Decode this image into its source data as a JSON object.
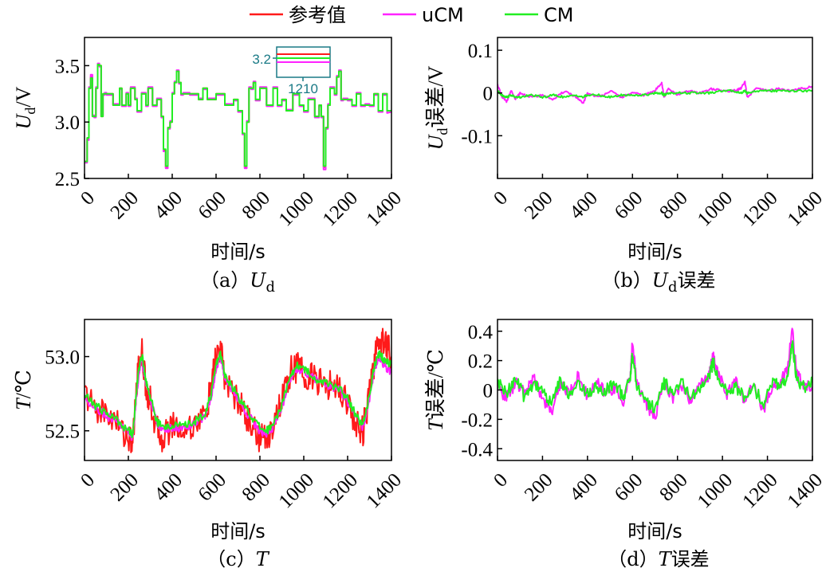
{
  "legend": {
    "items": [
      {
        "label": "参考值",
        "color": "#ff1a1a"
      },
      {
        "label": "uCM",
        "color": "#ff22ff"
      },
      {
        "label": "CM",
        "color": "#22ee22"
      }
    ]
  },
  "chart_data": [
    {
      "id": "a",
      "type": "line",
      "caption": "（a）",
      "caption_var": "U",
      "caption_sub": "d",
      "ylabel_var": "U",
      "ylabel_sub": "d",
      "ylabel_unit": "/V",
      "xlabel": "时间/s",
      "xlim": [
        0,
        1400
      ],
      "ylim": [
        2.5,
        3.75
      ],
      "xticks": [
        0,
        200,
        400,
        600,
        800,
        1000,
        1200,
        1400
      ],
      "yticks": [
        2.5,
        3.0,
        3.5
      ],
      "ytick_labels": [
        "2.5",
        "3.0",
        "3.5"
      ],
      "x": [
        0,
        12,
        20,
        28,
        36,
        44,
        52,
        60,
        68,
        76,
        84,
        92,
        100,
        130,
        160,
        170,
        190,
        200,
        210,
        230,
        240,
        260,
        280,
        290,
        310,
        330,
        350,
        360,
        370,
        380,
        390,
        400,
        410,
        420,
        430,
        440,
        450,
        480,
        520,
        540,
        560,
        600,
        640,
        680,
        700,
        720,
        730,
        740,
        750,
        760,
        770,
        780,
        800,
        830,
        860,
        880,
        900,
        920,
        950,
        980,
        1000,
        1020,
        1050,
        1070,
        1080,
        1090,
        1100,
        1110,
        1120,
        1140,
        1150,
        1160,
        1170,
        1180,
        1200,
        1220,
        1240,
        1260,
        1280,
        1300,
        1320,
        1340,
        1360,
        1380,
        1400
      ],
      "series": [
        {
          "name": "参考值",
          "color": "#ff1a1a",
          "values": [
            2.65,
            2.85,
            3.3,
            3.4,
            3.05,
            3.05,
            3.3,
            3.5,
            3.5,
            3.05,
            3.25,
            3.25,
            3.25,
            3.15,
            3.3,
            3.15,
            3.25,
            3.15,
            3.3,
            3.2,
            3.1,
            3.25,
            3.15,
            3.3,
            3.15,
            3.2,
            3.05,
            2.75,
            2.6,
            2.95,
            3.0,
            3.25,
            3.35,
            3.45,
            3.35,
            3.25,
            3.25,
            3.25,
            3.2,
            3.3,
            3.2,
            3.25,
            3.15,
            3.2,
            3.1,
            2.9,
            2.6,
            3.0,
            3.3,
            3.3,
            3.35,
            3.2,
            3.3,
            3.15,
            3.3,
            3.15,
            3.2,
            3.1,
            3.25,
            3.15,
            3.1,
            3.2,
            3.05,
            3.15,
            3.05,
            2.6,
            2.95,
            3.15,
            3.3,
            3.25,
            3.4,
            3.45,
            3.2,
            3.2,
            3.2,
            3.15,
            3.25,
            3.15,
            3.15,
            3.15,
            3.25,
            3.1,
            3.25,
            3.1,
            3.1
          ]
        },
        {
          "name": "uCM",
          "color": "#ff22ff",
          "values": [
            2.64,
            2.84,
            3.31,
            3.42,
            3.06,
            3.04,
            3.31,
            3.52,
            3.49,
            3.06,
            3.24,
            3.26,
            3.24,
            3.16,
            3.29,
            3.14,
            3.26,
            3.14,
            3.31,
            3.21,
            3.09,
            3.26,
            3.14,
            3.31,
            3.14,
            3.21,
            3.04,
            2.74,
            2.59,
            2.94,
            3.01,
            3.26,
            3.36,
            3.46,
            3.34,
            3.24,
            3.26,
            3.24,
            3.21,
            3.29,
            3.21,
            3.24,
            3.16,
            3.19,
            3.09,
            2.89,
            2.59,
            3.01,
            3.31,
            3.29,
            3.36,
            3.19,
            3.31,
            3.14,
            3.31,
            3.14,
            3.19,
            3.11,
            3.24,
            3.14,
            3.09,
            3.21,
            3.04,
            3.14,
            3.04,
            2.58,
            2.94,
            3.16,
            3.31,
            3.24,
            3.41,
            3.46,
            3.19,
            3.21,
            3.19,
            3.14,
            3.26,
            3.14,
            3.16,
            3.14,
            3.24,
            3.09,
            3.24,
            3.08,
            3.09
          ]
        },
        {
          "name": "CM",
          "color": "#22ee22",
          "values": [
            2.65,
            2.86,
            3.3,
            3.39,
            3.05,
            3.05,
            3.3,
            3.51,
            3.5,
            3.05,
            3.25,
            3.25,
            3.25,
            3.15,
            3.3,
            3.15,
            3.25,
            3.15,
            3.3,
            3.2,
            3.1,
            3.25,
            3.15,
            3.3,
            3.15,
            3.2,
            3.05,
            2.76,
            2.61,
            2.95,
            3.0,
            3.25,
            3.35,
            3.45,
            3.35,
            3.25,
            3.25,
            3.25,
            3.2,
            3.3,
            3.2,
            3.25,
            3.15,
            3.2,
            3.1,
            2.9,
            2.61,
            3.0,
            3.3,
            3.3,
            3.35,
            3.2,
            3.3,
            3.15,
            3.3,
            3.15,
            3.2,
            3.1,
            3.25,
            3.15,
            3.1,
            3.2,
            3.05,
            3.15,
            3.05,
            2.61,
            2.95,
            3.15,
            3.3,
            3.25,
            3.4,
            3.45,
            3.2,
            3.2,
            3.2,
            3.15,
            3.25,
            3.15,
            3.15,
            3.15,
            3.25,
            3.1,
            3.25,
            3.1,
            3.1
          ]
        }
      ],
      "inset": {
        "ylabel": "3.2",
        "xlabel": "1210"
      }
    },
    {
      "id": "b",
      "type": "line",
      "caption": "（b）",
      "caption_var": "U",
      "caption_sub": "d",
      "caption_suffix": "误差",
      "ylabel_var": "U",
      "ylabel_sub": "d",
      "ylabel_unit": "误差/V",
      "xlabel": "时间/s",
      "xlim": [
        0,
        1400
      ],
      "ylim": [
        -0.2,
        0.13
      ],
      "xticks": [
        0,
        200,
        400,
        600,
        800,
        1000,
        1200,
        1400
      ],
      "yticks": [
        -0.1,
        0,
        0.1
      ],
      "ytick_labels": [
        "-0.1",
        "0",
        "0.1"
      ],
      "x": [
        0,
        20,
        40,
        60,
        80,
        100,
        150,
        200,
        250,
        300,
        350,
        380,
        400,
        450,
        500,
        550,
        600,
        650,
        700,
        730,
        740,
        760,
        800,
        850,
        900,
        950,
        1000,
        1050,
        1080,
        1100,
        1110,
        1150,
        1200,
        1250,
        1300,
        1350,
        1400
      ],
      "series": [
        {
          "name": "uCM",
          "color": "#ff22ff",
          "values": [
            0.02,
            -0.01,
            -0.02,
            0.005,
            -0.015,
            0.0,
            -0.01,
            -0.005,
            -0.015,
            0.005,
            -0.01,
            -0.025,
            0.0,
            -0.01,
            0.005,
            -0.01,
            0.0,
            -0.005,
            0.005,
            0.025,
            -0.01,
            0.01,
            -0.005,
            0.005,
            0.0,
            0.01,
            0.005,
            0.005,
            0.01,
            0.025,
            -0.01,
            0.01,
            0.005,
            0.01,
            0.005,
            0.01,
            0.015
          ]
        },
        {
          "name": "CM",
          "color": "#22ee22",
          "values": [
            0.005,
            -0.005,
            -0.01,
            -0.005,
            -0.01,
            -0.01,
            -0.005,
            -0.01,
            -0.005,
            -0.01,
            -0.005,
            -0.01,
            -0.005,
            -0.005,
            -0.01,
            -0.005,
            -0.005,
            -0.005,
            0.0,
            0.0,
            -0.005,
            0.0,
            0.0,
            0.0,
            0.0,
            0.0,
            0.005,
            0.005,
            0.0,
            0.005,
            0.0,
            0.005,
            0.005,
            0.005,
            0.005,
            0.005,
            0.005
          ]
        }
      ]
    },
    {
      "id": "c",
      "type": "line",
      "caption": "（c）",
      "caption_var": "T",
      "ylabel_var": "T",
      "ylabel_unit": "/℃",
      "xlabel": "时间/s",
      "xlim": [
        0,
        1400
      ],
      "ylim": [
        52.3,
        53.25
      ],
      "xticks": [
        0,
        200,
        400,
        600,
        800,
        1000,
        1200,
        1400
      ],
      "yticks": [
        52.5,
        53.0
      ],
      "ytick_labels": [
        "52.5",
        "53.0"
      ],
      "x": [
        0,
        50,
        100,
        150,
        200,
        220,
        240,
        260,
        280,
        300,
        330,
        360,
        400,
        450,
        500,
        550,
        580,
        600,
        620,
        640,
        680,
        720,
        760,
        800,
        830,
        860,
        900,
        940,
        970,
        1000,
        1040,
        1080,
        1120,
        1160,
        1200,
        1240,
        1270,
        1300,
        1320,
        1340,
        1360,
        1380,
        1400
      ],
      "series": [
        {
          "name": "参考值",
          "color": "#ff1a1a",
          "values": [
            52.75,
            52.65,
            52.62,
            52.55,
            52.45,
            52.42,
            52.85,
            53.05,
            52.8,
            52.7,
            52.5,
            52.45,
            52.55,
            52.5,
            52.55,
            52.6,
            52.8,
            53.0,
            53.05,
            52.85,
            52.75,
            52.65,
            52.55,
            52.45,
            52.45,
            52.55,
            52.7,
            52.9,
            52.93,
            52.9,
            52.85,
            52.82,
            52.8,
            52.8,
            52.7,
            52.55,
            52.5,
            52.75,
            52.95,
            53.1,
            53.12,
            53.08,
            53.0
          ]
        },
        {
          "name": "uCM",
          "color": "#ff22ff",
          "values": [
            52.72,
            52.66,
            52.6,
            52.56,
            52.48,
            52.46,
            52.78,
            53.0,
            52.82,
            52.72,
            52.55,
            52.5,
            52.52,
            52.52,
            52.54,
            52.6,
            52.74,
            52.92,
            53.0,
            52.86,
            52.76,
            52.66,
            52.58,
            52.5,
            52.48,
            52.52,
            52.66,
            52.86,
            52.92,
            52.9,
            52.86,
            52.82,
            52.8,
            52.78,
            52.7,
            52.58,
            52.52,
            52.7,
            52.9,
            53.0,
            52.96,
            52.92,
            52.9
          ]
        },
        {
          "name": "CM",
          "color": "#22ee22",
          "values": [
            52.74,
            52.67,
            52.62,
            52.57,
            52.5,
            52.48,
            52.82,
            53.02,
            52.84,
            52.73,
            52.56,
            52.52,
            52.54,
            52.53,
            52.56,
            52.62,
            52.76,
            52.95,
            53.02,
            52.88,
            52.78,
            52.68,
            52.6,
            52.52,
            52.5,
            52.54,
            52.68,
            52.88,
            52.94,
            52.92,
            52.87,
            52.83,
            52.81,
            52.79,
            52.72,
            52.6,
            52.54,
            52.74,
            52.92,
            53.02,
            52.99,
            52.96,
            52.95
          ]
        }
      ]
    },
    {
      "id": "d",
      "type": "line",
      "caption": "（d）",
      "caption_var": "T",
      "caption_suffix": "误差",
      "ylabel_var": "T",
      "ylabel_unit": "误差/℃",
      "xlabel": "时间/s",
      "xlim": [
        0,
        1400
      ],
      "ylim": [
        -0.48,
        0.48
      ],
      "xticks": [
        0,
        200,
        400,
        600,
        800,
        1000,
        1200,
        1400
      ],
      "yticks": [
        -0.4,
        -0.2,
        0,
        0.2,
        0.4
      ],
      "ytick_labels": [
        "-0.4",
        "-0.2",
        "0",
        "0.2",
        "0.4"
      ],
      "x": [
        0,
        40,
        80,
        120,
        160,
        200,
        240,
        280,
        320,
        360,
        400,
        440,
        480,
        520,
        560,
        590,
        600,
        620,
        660,
        700,
        740,
        780,
        820,
        860,
        900,
        940,
        960,
        980,
        1020,
        1060,
        1100,
        1140,
        1180,
        1220,
        1260,
        1290,
        1310,
        1330,
        1360,
        1400
      ],
      "series": [
        {
          "name": "uCM",
          "color": "#ff22ff",
          "values": [
            0.02,
            -0.05,
            0.05,
            -0.02,
            0.08,
            -0.05,
            -0.15,
            0.05,
            -0.02,
            0.1,
            -0.05,
            0.05,
            -0.02,
            0.02,
            -0.08,
            0.1,
            0.32,
            0.05,
            -0.1,
            -0.18,
            0.05,
            -0.05,
            0.02,
            -0.08,
            0.05,
            0.1,
            0.25,
            0.1,
            -0.02,
            0.05,
            -0.08,
            0.05,
            -0.15,
            0.02,
            0.05,
            0.15,
            0.42,
            0.1,
            0.05,
            0.02
          ]
        },
        {
          "name": "CM",
          "color": "#22ee22",
          "values": [
            0.05,
            -0.02,
            0.08,
            -0.05,
            0.05,
            0.0,
            -0.1,
            0.08,
            -0.05,
            0.05,
            -0.02,
            0.02,
            0.0,
            0.05,
            -0.05,
            0.08,
            0.25,
            0.02,
            -0.08,
            -0.12,
            0.05,
            -0.02,
            0.05,
            -0.05,
            0.02,
            0.08,
            0.2,
            0.08,
            0.0,
            0.02,
            -0.05,
            0.02,
            -0.1,
            0.05,
            0.02,
            0.1,
            0.32,
            0.08,
            0.02,
            0.05
          ]
        }
      ]
    }
  ]
}
